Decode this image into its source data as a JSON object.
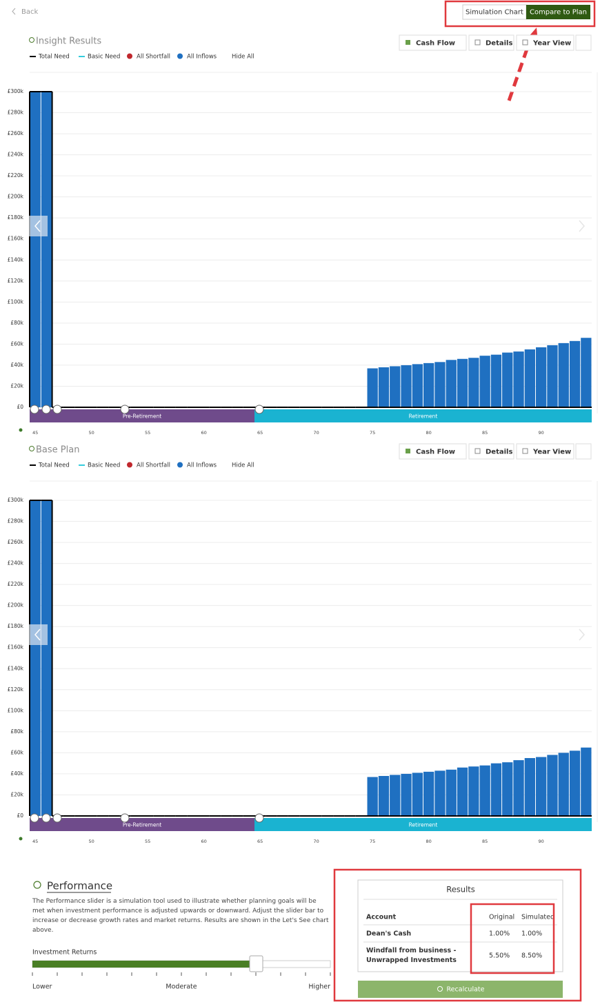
{
  "nav": {
    "back": "Back",
    "buttons": [
      "Simulation Chart",
      "Compare to Plan"
    ]
  },
  "chart_data": [
    {
      "type": "bar",
      "title": "Insight Results",
      "toolbar": [
        "Cash Flow",
        "Details",
        "Year View"
      ],
      "hide_all": "Hide All",
      "categories": [
        45,
        46,
        47,
        48,
        49,
        50,
        51,
        52,
        53,
        54,
        55,
        56,
        57,
        58,
        59,
        60,
        61,
        62,
        63,
        64,
        65,
        66,
        67,
        68,
        69,
        70,
        71,
        72,
        73,
        74,
        75,
        76,
        77,
        78,
        79,
        80,
        81,
        82,
        83,
        84,
        85,
        86,
        87,
        88,
        89,
        90,
        91,
        92,
        93,
        94
      ],
      "series": [
        {
          "name": "Total Need",
          "type": "line",
          "marker": "line",
          "color": "#000000",
          "values": [
            300000,
            300000,
            0,
            0,
            0,
            0,
            0,
            0,
            0,
            0,
            0,
            0,
            0,
            0,
            0,
            0,
            0,
            0,
            0,
            0,
            0,
            0,
            0,
            0,
            0,
            0,
            0,
            0,
            0,
            0,
            0,
            0,
            0,
            0,
            0,
            0,
            0,
            0,
            0,
            0,
            0,
            0,
            0,
            0,
            0,
            0,
            0,
            0,
            0,
            0
          ]
        },
        {
          "name": "Basic Need",
          "marker": "line",
          "color": "#33ccdd"
        },
        {
          "name": "All Shortfall",
          "marker": "dot",
          "color": "#c0272d"
        },
        {
          "name": "All Inflows",
          "type": "bar",
          "marker": "dot",
          "color": "#1f70c1",
          "values": [
            300000,
            300000,
            0,
            0,
            0,
            0,
            0,
            0,
            0,
            0,
            0,
            0,
            0,
            0,
            0,
            0,
            0,
            0,
            0,
            0,
            0,
            0,
            0,
            0,
            0,
            0,
            0,
            0,
            0,
            0,
            37000,
            38000,
            39000,
            40000,
            41000,
            42000,
            43000,
            45000,
            46000,
            47000,
            49000,
            50000,
            52000,
            53000,
            55000,
            57000,
            59000,
            61000,
            63000,
            66000
          ]
        }
      ],
      "ylim": [
        0,
        300000
      ],
      "yticks": [
        {
          "value": 0,
          "label": "£0"
        },
        {
          "value": 20000,
          "label": "£20k"
        },
        {
          "value": 40000,
          "label": "£40k"
        },
        {
          "value": 60000,
          "label": "£60k"
        },
        {
          "value": 80000,
          "label": "£80k"
        },
        {
          "value": 100000,
          "label": "£100k"
        },
        {
          "value": 120000,
          "label": "£120k"
        },
        {
          "value": 140000,
          "label": "£140k"
        },
        {
          "value": 160000,
          "label": "£160k"
        },
        {
          "value": 180000,
          "label": "£180k"
        },
        {
          "value": 200000,
          "label": "£200k"
        },
        {
          "value": 220000,
          "label": "£220k"
        },
        {
          "value": 240000,
          "label": "£240k"
        },
        {
          "value": 260000,
          "label": "£260k"
        },
        {
          "value": 280000,
          "label": "£280k"
        },
        {
          "value": 300000,
          "label": "£300k"
        }
      ],
      "xticks": [
        45,
        50,
        55,
        60,
        65,
        70,
        75,
        80,
        85,
        90
      ],
      "grid": true,
      "phases": [
        {
          "label": "Pre-Retirement",
          "from": 45
        },
        {
          "label": "Retirement",
          "from": 65
        }
      ]
    },
    {
      "type": "bar",
      "title": "Base Plan",
      "toolbar": [
        "Cash Flow",
        "Details",
        "Year View"
      ],
      "hide_all": "Hide All",
      "categories": [
        45,
        46,
        47,
        48,
        49,
        50,
        51,
        52,
        53,
        54,
        55,
        56,
        57,
        58,
        59,
        60,
        61,
        62,
        63,
        64,
        65,
        66,
        67,
        68,
        69,
        70,
        71,
        72,
        73,
        74,
        75,
        76,
        77,
        78,
        79,
        80,
        81,
        82,
        83,
        84,
        85,
        86,
        87,
        88,
        89,
        90,
        91,
        92,
        93,
        94
      ],
      "series": [
        {
          "name": "Total Need",
          "type": "line",
          "marker": "line",
          "color": "#000000",
          "values": [
            300000,
            300000,
            0,
            0,
            0,
            0,
            0,
            0,
            0,
            0,
            0,
            0,
            0,
            0,
            0,
            0,
            0,
            0,
            0,
            0,
            0,
            0,
            0,
            0,
            0,
            0,
            0,
            0,
            0,
            0,
            0,
            0,
            0,
            0,
            0,
            0,
            0,
            0,
            0,
            0,
            0,
            0,
            0,
            0,
            0,
            0,
            0,
            0,
            0,
            0
          ]
        },
        {
          "name": "Basic Need",
          "marker": "line",
          "color": "#33ccdd"
        },
        {
          "name": "All Shortfall",
          "marker": "dot",
          "color": "#c0272d"
        },
        {
          "name": "All Inflows",
          "type": "bar",
          "marker": "dot",
          "color": "#1f70c1",
          "values": [
            300000,
            300000,
            0,
            0,
            0,
            0,
            0,
            0,
            0,
            0,
            0,
            0,
            0,
            0,
            0,
            0,
            0,
            0,
            0,
            0,
            0,
            0,
            0,
            0,
            0,
            0,
            0,
            0,
            0,
            0,
            37000,
            38000,
            39000,
            40000,
            41000,
            42000,
            43000,
            44000,
            46000,
            47000,
            48000,
            50000,
            51000,
            53000,
            55000,
            56000,
            58000,
            60000,
            62000,
            65000
          ]
        }
      ],
      "ylim": [
        0,
        300000
      ],
      "yticks": [
        {
          "value": 0,
          "label": "£0"
        },
        {
          "value": 20000,
          "label": "£20k"
        },
        {
          "value": 40000,
          "label": "£40k"
        },
        {
          "value": 60000,
          "label": "£60k"
        },
        {
          "value": 80000,
          "label": "£80k"
        },
        {
          "value": 100000,
          "label": "£100k"
        },
        {
          "value": 120000,
          "label": "£120k"
        },
        {
          "value": 140000,
          "label": "£140k"
        },
        {
          "value": 160000,
          "label": "£160k"
        },
        {
          "value": 180000,
          "label": "£180k"
        },
        {
          "value": 200000,
          "label": "£200k"
        },
        {
          "value": 220000,
          "label": "£220k"
        },
        {
          "value": 240000,
          "label": "£240k"
        },
        {
          "value": 260000,
          "label": "£260k"
        },
        {
          "value": 280000,
          "label": "£280k"
        },
        {
          "value": 300000,
          "label": "£300k"
        }
      ],
      "xticks": [
        45,
        50,
        55,
        60,
        65,
        70,
        75,
        80,
        85,
        90
      ],
      "grid": true,
      "phases": [
        {
          "label": "Pre-Retirement",
          "from": 45
        },
        {
          "label": "Retirement",
          "from": 65
        }
      ]
    }
  ],
  "performance": {
    "title": "Performance",
    "description": "The Performance slider is a simulation tool used to illustrate whether planning goals will be met when investment performance is adjusted upwards or downward. Adjust the slider bar to increase or decrease growth rates and market returns. Results are shown in the Let's See chart above.",
    "slider_label": "Investment Returns",
    "scale": [
      "Lower",
      "Moderate",
      "Higher"
    ],
    "results": {
      "title": "Results",
      "columns": [
        "Account",
        "Original",
        "Simulated"
      ],
      "rows": [
        [
          "Dean's Cash",
          "1.00%",
          "1.00%"
        ],
        [
          "Windfall from business - Unwrapped Investments",
          "5.50%",
          "8.50%"
        ]
      ]
    },
    "button": "Recalculate"
  }
}
